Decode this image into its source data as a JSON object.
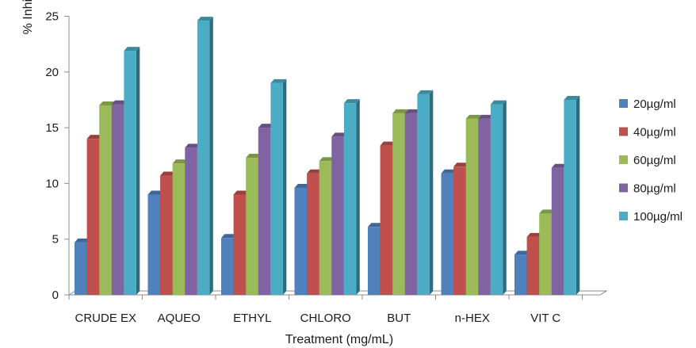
{
  "chart_data": {
    "type": "bar",
    "title": "",
    "xlabel": "Treatment (mg/mL)",
    "ylabel": "% Inhibition",
    "ylim": [
      0,
      25
    ],
    "yticks": [
      0,
      5,
      10,
      15,
      20,
      25
    ],
    "grid": false,
    "legend_position": "right",
    "categories": [
      "CRUDE EX",
      "AQUEO",
      "ETHYL",
      "CHLORO",
      "BUT",
      "n-HEX",
      "VIT C"
    ],
    "series": [
      {
        "name": "20µg/ml",
        "color": "#4F81BD",
        "values": [
          4.7,
          9.0,
          5.1,
          9.6,
          6.1,
          10.9,
          3.6
        ]
      },
      {
        "name": "40µg/ml",
        "color": "#C0504D",
        "values": [
          14.0,
          10.7,
          9.0,
          10.9,
          13.4,
          11.5,
          5.2
        ]
      },
      {
        "name": "60µg/ml",
        "color": "#9BBB59",
        "values": [
          17.0,
          11.8,
          12.3,
          12.0,
          16.3,
          15.8,
          7.3
        ]
      },
      {
        "name": "80µg/ml",
        "color": "#8064A2",
        "values": [
          17.1,
          13.2,
          15.0,
          14.2,
          16.3,
          15.8,
          11.4
        ]
      },
      {
        "name": "100µg/ml",
        "color": "#4BACC6",
        "values": [
          21.9,
          24.6,
          19.0,
          17.2,
          18.0,
          17.1,
          17.5
        ]
      }
    ]
  }
}
